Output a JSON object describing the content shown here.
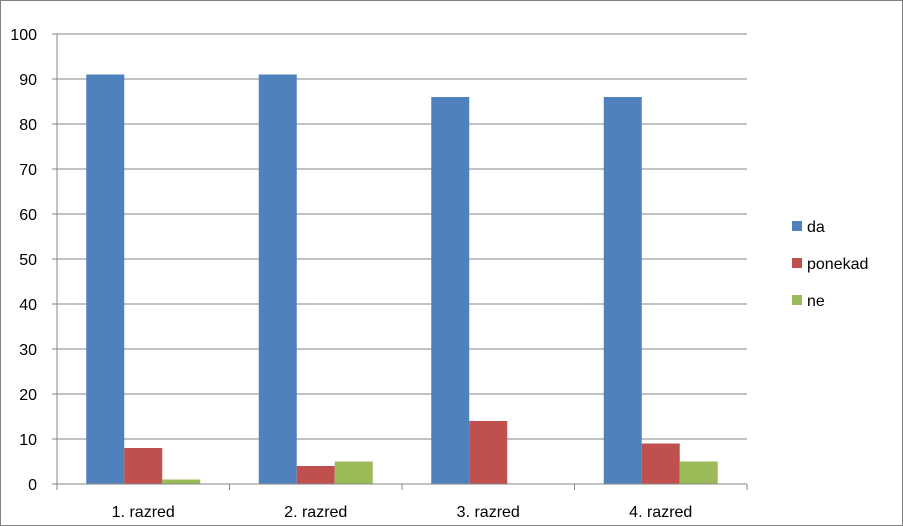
{
  "chart_data": {
    "type": "bar",
    "categories": [
      "1. razred",
      "2. razred",
      "3. razred",
      "4. razred"
    ],
    "series": [
      {
        "name": "da",
        "color": "#4F81BD",
        "values": [
          91,
          91,
          86,
          86
        ]
      },
      {
        "name": "ponekad",
        "color": "#C0504D",
        "values": [
          8,
          4,
          14,
          9
        ]
      },
      {
        "name": "ne",
        "color": "#9BBB59",
        "values": [
          1,
          5,
          0,
          5
        ]
      }
    ],
    "yticks": [
      "0",
      "10",
      "20",
      "30",
      "40",
      "50",
      "60",
      "70",
      "80",
      "90",
      "100"
    ],
    "ylim": [
      0,
      100
    ],
    "grid": true,
    "legend": "right"
  }
}
